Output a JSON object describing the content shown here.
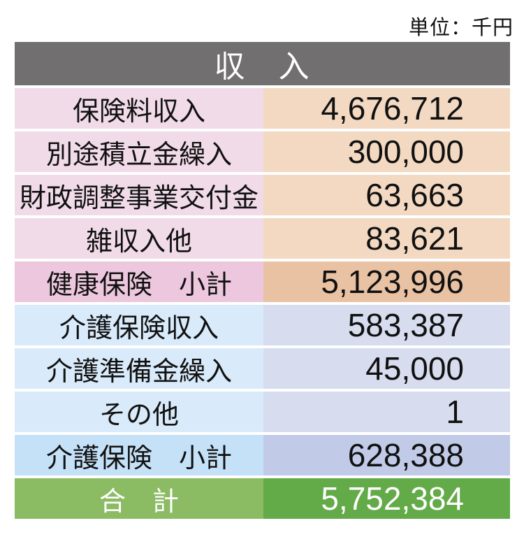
{
  "unit_label": "単位：千円",
  "table": {
    "header": "収　入",
    "rows": [
      {
        "label": "保険料収入",
        "value": "4,676,712",
        "style": "health"
      },
      {
        "label": "別途積立金繰入",
        "value": "300,000",
        "style": "health"
      },
      {
        "label": "財政調整事業交付金",
        "value": "63,663",
        "style": "health"
      },
      {
        "label": "雑収入他",
        "value": "83,621",
        "style": "health"
      },
      {
        "label": "健康保険　小計",
        "value": "5,123,996",
        "style": "health_subtotal"
      },
      {
        "label": "介護保険収入",
        "value": "583,387",
        "style": "care"
      },
      {
        "label": "介護準備金繰入",
        "value": "45,000",
        "style": "care"
      },
      {
        "label": "その他",
        "value": "1",
        "style": "care"
      },
      {
        "label": "介護保険　小計",
        "value": "628,388",
        "style": "care_subtotal"
      },
      {
        "label": "合　計",
        "value": "5,752,384",
        "style": "total"
      }
    ]
  },
  "colors": {
    "header_bg": "#716f6f",
    "header_text": "#ffffff",
    "row_text": "#111111",
    "row_styles": {
      "health": {
        "label_bg": "#f1dbe9",
        "value_bg": "#f3d9c2"
      },
      "health_subtotal": {
        "label_bg": "#ecc7dd",
        "value_bg": "#e9c2a4"
      },
      "care": {
        "label_bg": "#d9eafa",
        "value_bg": "#d7ddef"
      },
      "care_subtotal": {
        "label_bg": "#c5e1f8",
        "value_bg": "#c1cbe8"
      },
      "total": {
        "label_bg": "#8bbb63",
        "value_bg": "#63aa48",
        "text": "#ffffff"
      }
    }
  },
  "chart_data": {
    "type": "table",
    "title": "収入",
    "unit": "千円",
    "rows": [
      {
        "label": "保険料収入",
        "value": 4676712,
        "kind": "item"
      },
      {
        "label": "別途積立金繰入",
        "value": 300000,
        "kind": "item"
      },
      {
        "label": "財政調整事業交付金",
        "value": 63663,
        "kind": "item"
      },
      {
        "label": "雑収入他",
        "value": 83621,
        "kind": "item"
      },
      {
        "label": "健康保険　小計",
        "value": 5123996,
        "kind": "subtotal"
      },
      {
        "label": "介護保険収入",
        "value": 583387,
        "kind": "item"
      },
      {
        "label": "介護準備金繰入",
        "value": 45000,
        "kind": "item"
      },
      {
        "label": "その他",
        "value": 1,
        "kind": "item"
      },
      {
        "label": "介護保険　小計",
        "value": 628388,
        "kind": "subtotal"
      },
      {
        "label": "合　計",
        "value": 5752384,
        "kind": "total"
      }
    ]
  }
}
